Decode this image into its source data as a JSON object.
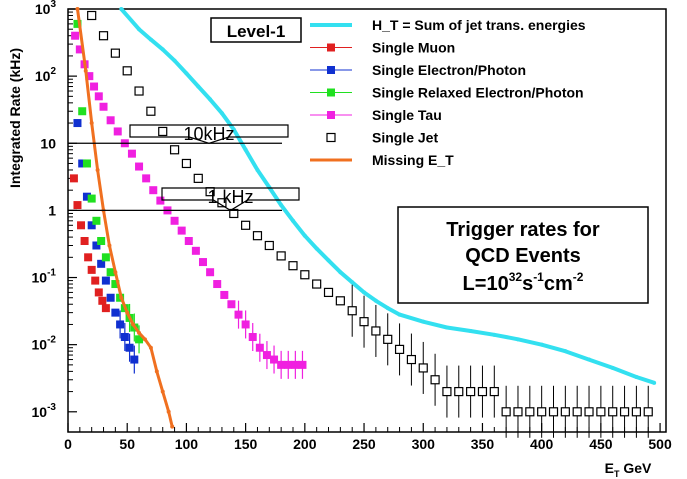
{
  "chart_data": {
    "type": "scatter",
    "xlabel": "E_T GeV",
    "ylabel": "Integrated Rate (kHz)",
    "xlim": [
      0,
      505
    ],
    "ylim": [
      0.0005,
      1000
    ],
    "y_scale": "log",
    "x_ticks": [
      0,
      50,
      100,
      150,
      200,
      250,
      300,
      350,
      400,
      450,
      500
    ],
    "y_ticks": [
      {
        "value": 0.001,
        "base": "10",
        "exp": "-3"
      },
      {
        "value": 0.01,
        "base": "10",
        "exp": "-2"
      },
      {
        "value": 0.1,
        "base": "10",
        "exp": "-1"
      },
      {
        "value": 1,
        "base": "1",
        "exp": ""
      },
      {
        "value": 10,
        "base": "10",
        "exp": ""
      },
      {
        "value": 100,
        "base": "10",
        "exp": "2"
      },
      {
        "value": 1000,
        "base": "10",
        "exp": "3"
      }
    ],
    "legend_position": "top-right",
    "level_label": "Level-1",
    "series": [
      {
        "name": "H_T = Sum of jet trans. energies",
        "color": "#33e0f0",
        "marker": "line",
        "x": [
          45,
          60,
          70,
          80,
          90,
          100,
          110,
          120,
          130,
          140,
          150,
          160,
          170,
          180,
          190,
          200,
          210,
          220,
          230,
          240,
          250,
          260,
          270,
          280,
          300,
          320,
          340,
          360,
          380,
          400,
          420,
          440,
          460,
          480,
          495
        ],
        "y": [
          1000,
          500,
          350,
          250,
          170,
          110,
          70,
          45,
          28,
          16,
          8,
          4,
          2.2,
          1.2,
          0.7,
          0.42,
          0.27,
          0.18,
          0.12,
          0.085,
          0.06,
          0.045,
          0.035,
          0.028,
          0.022,
          0.018,
          0.016,
          0.014,
          0.012,
          0.01,
          0.008,
          0.006,
          0.0045,
          0.0033,
          0.0027
        ]
      },
      {
        "name": "Single Muon",
        "color": "#e02020",
        "marker": "square",
        "x": [
          5,
          8,
          11,
          14,
          17,
          20,
          23,
          26,
          29,
          32
        ],
        "y": [
          3,
          1.2,
          0.6,
          0.35,
          0.2,
          0.13,
          0.09,
          0.06,
          0.045,
          0.035
        ]
      },
      {
        "name": "Single Electron/Photon",
        "color": "#1030d0",
        "marker": "square",
        "x": [
          8,
          12,
          16,
          20,
          24,
          28,
          32,
          36,
          40,
          44,
          48,
          52,
          56
        ],
        "y": [
          20,
          5,
          1.6,
          0.6,
          0.3,
          0.16,
          0.09,
          0.05,
          0.03,
          0.02,
          0.013,
          0.009,
          0.006
        ]
      },
      {
        "name": "Single Relaxed Electron/Photon",
        "color": "#20e020",
        "marker": "square",
        "x": [
          8,
          12,
          16,
          20,
          24,
          28,
          32,
          36,
          40,
          44,
          48,
          52,
          56,
          60
        ],
        "y": [
          600,
          30,
          5,
          1.5,
          0.7,
          0.35,
          0.2,
          0.12,
          0.08,
          0.05,
          0.035,
          0.025,
          0.018,
          0.012
        ]
      },
      {
        "name": "Single Tau",
        "color": "#f020e0",
        "marker": "square",
        "x": [
          6,
          10,
          14,
          18,
          22,
          26,
          30,
          36,
          42,
          48,
          54,
          60,
          66,
          72,
          78,
          84,
          90,
          96,
          102,
          108,
          114,
          120,
          126,
          132,
          138,
          144,
          150,
          156,
          162,
          168,
          174,
          180,
          186,
          192,
          198
        ],
        "y": [
          400,
          250,
          150,
          100,
          70,
          50,
          35,
          22,
          15,
          10,
          7,
          4.5,
          3,
          2,
          1.4,
          1,
          0.7,
          0.5,
          0.35,
          0.25,
          0.17,
          0.12,
          0.08,
          0.055,
          0.04,
          0.028,
          0.02,
          0.013,
          0.009,
          0.007,
          0.006,
          0.005,
          0.005,
          0.005,
          0.005
        ]
      },
      {
        "name": "Single Jet",
        "color": "#000000",
        "marker": "open-square",
        "x": [
          20,
          30,
          40,
          50,
          60,
          70,
          80,
          90,
          100,
          110,
          120,
          130,
          140,
          150,
          160,
          170,
          180,
          190,
          200,
          210,
          220,
          230,
          240,
          250,
          260,
          270,
          280,
          290,
          300,
          310,
          320,
          330,
          340,
          350,
          360,
          370,
          380,
          390,
          400,
          410,
          420,
          430,
          440,
          450,
          460,
          470,
          480,
          490
        ],
        "y": [
          800,
          400,
          220,
          120,
          60,
          30,
          15,
          8,
          5,
          3,
          1.9,
          1.3,
          0.9,
          0.6,
          0.42,
          0.3,
          0.21,
          0.15,
          0.11,
          0.08,
          0.06,
          0.045,
          0.032,
          0.022,
          0.016,
          0.012,
          0.0085,
          0.006,
          0.0045,
          0.003,
          0.002,
          0.002,
          0.002,
          0.002,
          0.002,
          0.001,
          0.001,
          0.001,
          0.001,
          0.001,
          0.001,
          0.001,
          0.001,
          0.001,
          0.001,
          0.001,
          0.001,
          0.001
        ]
      },
      {
        "name": "Missing E_T",
        "color": "#f07020",
        "marker": "line",
        "x": [
          8,
          15,
          20,
          25,
          30,
          35,
          40,
          45,
          50,
          55,
          60,
          65,
          70,
          75,
          80,
          85,
          88
        ],
        "y": [
          1000,
          120,
          20,
          4,
          1,
          0.3,
          0.12,
          0.05,
          0.03,
          0.02,
          0.015,
          0.012,
          0.009,
          0.004,
          0.002,
          0.001,
          0.0006
        ]
      }
    ],
    "thresholds": [
      {
        "value": 10,
        "label": "10kHz"
      },
      {
        "value": 1,
        "label": "1 kHz"
      }
    ],
    "annotation_lines": [
      "Trigger rates for",
      "QCD Events"
    ],
    "luminosity": {
      "prefix": "L=10",
      "exp1": "32",
      "mid1": "s",
      "exp2": "-1",
      "mid2": "cm",
      "exp3": "-2"
    }
  }
}
